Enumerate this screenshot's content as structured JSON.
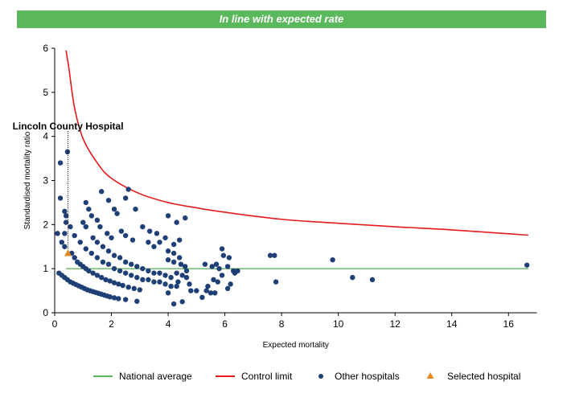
{
  "banner": {
    "text": "In line with expected rate"
  },
  "chart_data": {
    "type": "scatter",
    "title": "",
    "xlabel": "Expected mortality",
    "ylabel": "Standardised mortality ratio",
    "xlim": [
      0,
      17
    ],
    "ylim": [
      0,
      6
    ],
    "x_ticks": [
      "0",
      "2",
      "4",
      "6",
      "8",
      "10",
      "12",
      "14",
      "16"
    ],
    "y_ticks": [
      "0",
      "1",
      "2",
      "3",
      "4",
      "5",
      "6"
    ],
    "grid": false,
    "legend_position": "bottom",
    "colors": {
      "national_average": "#5cb85c",
      "control_limit": "#e41a1c",
      "other_hospitals": "#1f3f77",
      "selected_hospital": "#e8891e",
      "banner": "#5cb85c"
    },
    "series": [
      {
        "name": "National average",
        "kind": "line",
        "x": [
          0.4,
          16.7
        ],
        "y": [
          1,
          1
        ]
      },
      {
        "name": "Control limit",
        "kind": "line",
        "x": [
          0.4,
          0.5,
          0.7,
          1.0,
          1.5,
          2.0,
          3.0,
          4.0,
          5.0,
          6.0,
          8.0,
          10.0,
          12.0,
          14.0,
          16.7
        ],
        "y": [
          5.95,
          5.55,
          4.65,
          3.95,
          3.4,
          3.05,
          2.7,
          2.5,
          2.38,
          2.28,
          2.12,
          2.03,
          1.95,
          1.88,
          1.76
        ]
      },
      {
        "name": "Other hospitals",
        "kind": "scatter",
        "points": [
          [
            0.45,
            3.65
          ],
          [
            0.2,
            3.4
          ],
          [
            0.2,
            2.6
          ],
          [
            0.35,
            2.3
          ],
          [
            0.4,
            2.2
          ],
          [
            0.4,
            2.05
          ],
          [
            0.55,
            1.95
          ],
          [
            0.35,
            1.8
          ],
          [
            0.1,
            1.8
          ],
          [
            0.25,
            1.6
          ],
          [
            0.35,
            1.5
          ],
          [
            0.7,
            1.75
          ],
          [
            1.1,
            2.5
          ],
          [
            1.2,
            2.35
          ],
          [
            1.65,
            2.75
          ],
          [
            1.9,
            2.55
          ],
          [
            2.1,
            2.35
          ],
          [
            2.5,
            2.6
          ],
          [
            2.6,
            2.8
          ],
          [
            2.85,
            2.35
          ],
          [
            1.0,
            2.05
          ],
          [
            1.3,
            2.2
          ],
          [
            1.5,
            2.1
          ],
          [
            1.6,
            1.95
          ],
          [
            1.85,
            1.8
          ],
          [
            2.0,
            1.7
          ],
          [
            2.2,
            2.25
          ],
          [
            2.35,
            1.85
          ],
          [
            2.5,
            1.75
          ],
          [
            2.75,
            1.65
          ],
          [
            3.1,
            1.95
          ],
          [
            3.35,
            1.85
          ],
          [
            3.6,
            1.8
          ],
          [
            3.9,
            1.7
          ],
          [
            3.5,
            1.5
          ],
          [
            1.1,
            1.95
          ],
          [
            1.35,
            1.7
          ],
          [
            1.5,
            1.6
          ],
          [
            1.7,
            1.5
          ],
          [
            1.9,
            1.4
          ],
          [
            2.1,
            1.3
          ],
          [
            2.3,
            1.25
          ],
          [
            2.5,
            1.15
          ],
          [
            2.7,
            1.1
          ],
          [
            2.9,
            1.05
          ],
          [
            3.1,
            1.0
          ],
          [
            3.3,
            0.95
          ],
          [
            3.5,
            0.9
          ],
          [
            3.7,
            0.9
          ],
          [
            3.9,
            0.85
          ],
          [
            0.9,
            1.6
          ],
          [
            1.1,
            1.45
          ],
          [
            1.3,
            1.35
          ],
          [
            1.5,
            1.25
          ],
          [
            1.7,
            1.15
          ],
          [
            1.9,
            1.1
          ],
          [
            2.1,
            1.0
          ],
          [
            2.3,
            0.95
          ],
          [
            2.5,
            0.9
          ],
          [
            2.7,
            0.85
          ],
          [
            2.9,
            0.8
          ],
          [
            3.1,
            0.75
          ],
          [
            3.3,
            0.75
          ],
          [
            3.5,
            0.7
          ],
          [
            3.7,
            0.7
          ],
          [
            3.9,
            0.65
          ],
          [
            4.1,
            0.6
          ],
          [
            4.3,
            0.6
          ],
          [
            0.6,
            1.35
          ],
          [
            0.7,
            1.25
          ],
          [
            0.8,
            1.15
          ],
          [
            0.9,
            1.1
          ],
          [
            1.0,
            1.05
          ],
          [
            1.1,
            1.0
          ],
          [
            1.2,
            0.95
          ],
          [
            1.35,
            0.9
          ],
          [
            1.5,
            0.85
          ],
          [
            1.65,
            0.8
          ],
          [
            1.8,
            0.75
          ],
          [
            1.95,
            0.72
          ],
          [
            2.1,
            0.68
          ],
          [
            2.25,
            0.65
          ],
          [
            2.4,
            0.62
          ],
          [
            2.6,
            0.58
          ],
          [
            2.8,
            0.55
          ],
          [
            3.0,
            0.52
          ],
          [
            0.15,
            0.9
          ],
          [
            0.25,
            0.85
          ],
          [
            0.35,
            0.8
          ],
          [
            0.45,
            0.75
          ],
          [
            0.55,
            0.7
          ],
          [
            0.65,
            0.67
          ],
          [
            0.75,
            0.64
          ],
          [
            0.85,
            0.61
          ],
          [
            0.95,
            0.58
          ],
          [
            1.05,
            0.55
          ],
          [
            1.15,
            0.52
          ],
          [
            1.25,
            0.5
          ],
          [
            1.35,
            0.48
          ],
          [
            1.45,
            0.46
          ],
          [
            1.55,
            0.44
          ],
          [
            1.65,
            0.42
          ],
          [
            1.75,
            0.4
          ],
          [
            1.85,
            0.38
          ],
          [
            1.95,
            0.36
          ],
          [
            2.1,
            0.34
          ],
          [
            2.25,
            0.32
          ],
          [
            2.5,
            0.3
          ],
          [
            2.9,
            0.26
          ],
          [
            4.0,
            2.2
          ],
          [
            4.3,
            2.05
          ],
          [
            4.6,
            2.15
          ],
          [
            3.3,
            1.6
          ],
          [
            3.7,
            1.6
          ],
          [
            4.2,
            1.55
          ],
          [
            4.4,
            1.65
          ],
          [
            4.0,
            1.4
          ],
          [
            4.2,
            1.35
          ],
          [
            4.4,
            1.25
          ],
          [
            4.0,
            1.2
          ],
          [
            4.2,
            1.15
          ],
          [
            4.45,
            1.1
          ],
          [
            4.6,
            1.05
          ],
          [
            4.65,
            0.95
          ],
          [
            4.3,
            0.9
          ],
          [
            4.5,
            0.85
          ],
          [
            4.65,
            0.8
          ],
          [
            4.35,
            0.7
          ],
          [
            4.1,
            0.8
          ],
          [
            4.0,
            0.45
          ],
          [
            4.2,
            0.2
          ],
          [
            4.5,
            0.25
          ],
          [
            4.75,
            0.65
          ],
          [
            4.8,
            0.5
          ],
          [
            5.0,
            0.5
          ],
          [
            5.2,
            0.35
          ],
          [
            5.35,
            0.5
          ],
          [
            5.5,
            0.45
          ],
          [
            5.65,
            0.45
          ],
          [
            5.4,
            0.6
          ],
          [
            5.6,
            0.75
          ],
          [
            5.75,
            0.7
          ],
          [
            5.9,
            0.85
          ],
          [
            6.1,
            0.55
          ],
          [
            6.2,
            0.65
          ],
          [
            6.35,
            0.9
          ],
          [
            5.3,
            1.1
          ],
          [
            5.55,
            1.05
          ],
          [
            5.7,
            1.1
          ],
          [
            5.8,
            1.0
          ],
          [
            5.9,
            1.45
          ],
          [
            5.95,
            1.3
          ],
          [
            6.1,
            1.05
          ],
          [
            6.15,
            1.25
          ],
          [
            6.3,
            0.95
          ],
          [
            6.45,
            0.95
          ],
          [
            7.6,
            1.3
          ],
          [
            7.75,
            1.3
          ],
          [
            7.8,
            0.7
          ],
          [
            9.8,
            1.2
          ],
          [
            10.5,
            0.8
          ],
          [
            11.2,
            0.75
          ],
          [
            16.65,
            1.08
          ]
        ]
      },
      {
        "name": "Selected hospital",
        "kind": "scatter",
        "label": "Lincoln County Hospital",
        "points": [
          [
            0.47,
            1.35
          ]
        ]
      }
    ]
  },
  "legend": [
    {
      "label": "National average",
      "symbol": "line",
      "color": "#5cb85c"
    },
    {
      "label": "Control limit",
      "symbol": "line",
      "color": "#e41a1c"
    },
    {
      "label": "Other hospitals",
      "symbol": "circle",
      "color": "#1f3f77"
    },
    {
      "label": "Selected hospital",
      "symbol": "triangle",
      "color": "#e8891e"
    }
  ]
}
